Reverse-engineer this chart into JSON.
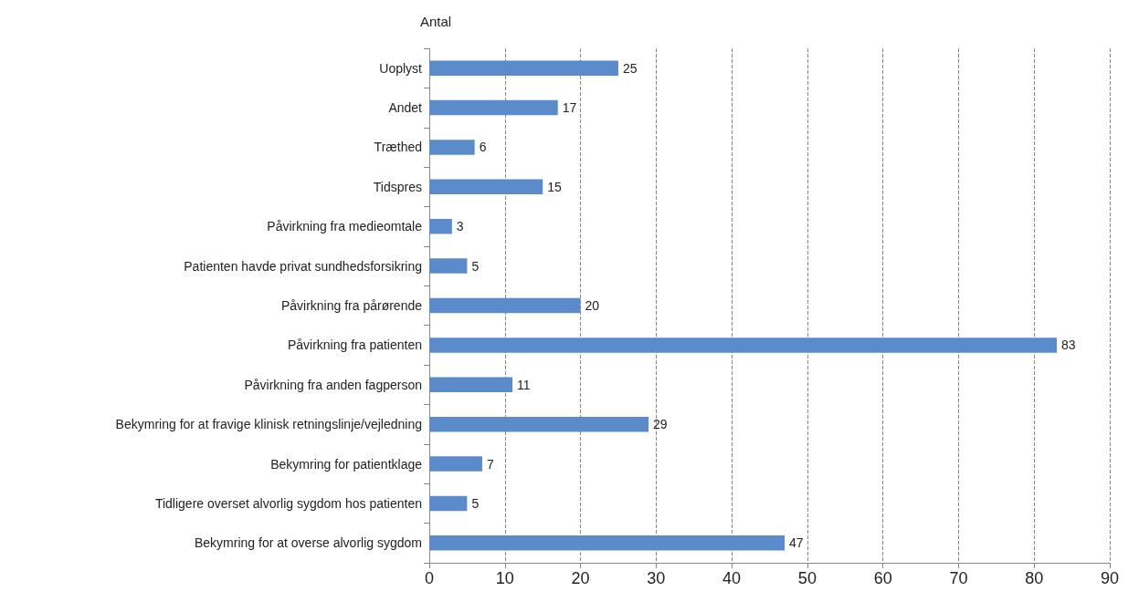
{
  "chart_data": {
    "type": "bar",
    "orientation": "horizontal",
    "ylabel": "Antal",
    "categories": [
      "Uoplyst",
      "Andet",
      "Træthed",
      "Tidspres",
      "Påvirkning fra medieomtale",
      "Patienten havde privat sundhedsforsikring",
      "Påvirkning fra pårørende",
      "Påvirkning fra patienten",
      "Påvirkning fra anden fagperson",
      "Bekymring for at fravige klinisk retningslinje/vejledning",
      "Bekymring for patientklage",
      "Tidligere overset alvorlig sygdom hos patienten",
      "Bekymring for at overse alvorlig sygdom"
    ],
    "values": [
      25,
      17,
      6,
      15,
      3,
      5,
      20,
      83,
      11,
      29,
      7,
      5,
      47
    ],
    "color": "#5b8bcb",
    "xlim": [
      0,
      90
    ],
    "xticks": [
      0,
      10,
      20,
      30,
      40,
      50,
      60,
      70,
      80,
      90
    ],
    "grid": "x",
    "data_labels": true
  }
}
